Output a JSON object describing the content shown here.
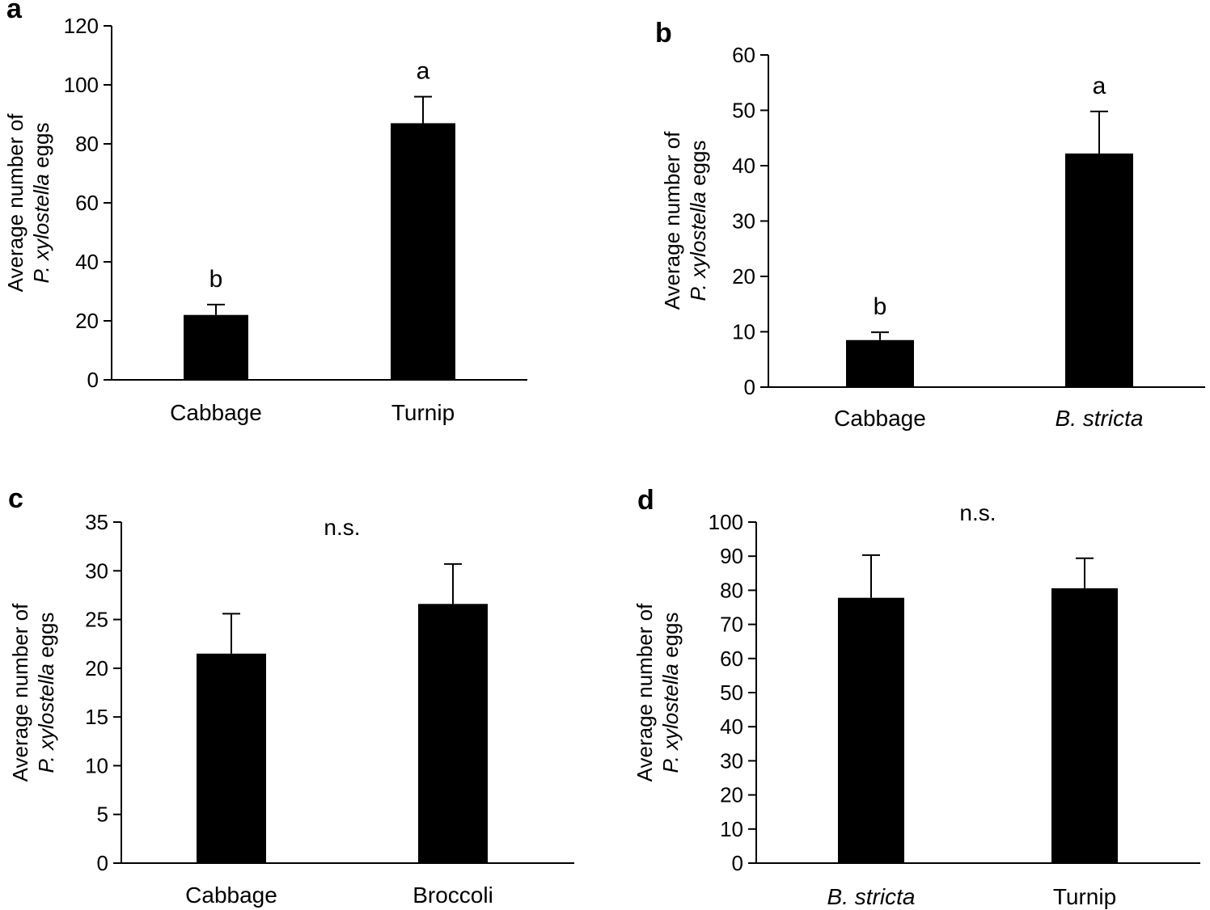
{
  "figure": {
    "panels": [
      {
        "label": "a",
        "ylabel_line1": "Average number of",
        "ylabel_species": "P. xylostella",
        "ylabel_suffix": " eggs"
      },
      {
        "label": "b",
        "ylabel_line1": "Average number of",
        "ylabel_species": "P. xylostella",
        "ylabel_suffix": " eggs"
      },
      {
        "label": "c",
        "ylabel_line1": "Average number of",
        "ylabel_species": "P. xylostella",
        "ylabel_suffix": " eggs"
      },
      {
        "label": "d",
        "ylabel_line1": "Average number of",
        "ylabel_species": "P. xylostella",
        "ylabel_suffix": " eggs"
      }
    ]
  },
  "colors": {
    "bar": "#000000",
    "axis": "#000000"
  },
  "chart_data": [
    {
      "panel": "a",
      "type": "bar",
      "categories": [
        "Cabbage",
        "Turnip"
      ],
      "italic_categories": [
        false,
        false
      ],
      "values": [
        22,
        87
      ],
      "errors": [
        3.5,
        9
      ],
      "annotations": [
        "b",
        "a"
      ],
      "note": "",
      "ylim": [
        0,
        120
      ],
      "yticks": [
        0,
        20,
        40,
        60,
        80,
        100,
        120
      ],
      "ylabel": "Average number of P. xylostella eggs",
      "xlabel": ""
    },
    {
      "panel": "b",
      "type": "bar",
      "categories": [
        "Cabbage",
        "B. stricta"
      ],
      "italic_categories": [
        false,
        true
      ],
      "values": [
        8.5,
        42.2
      ],
      "errors": [
        1.4,
        7.6
      ],
      "annotations": [
        "b",
        "a"
      ],
      "note": "",
      "ylim": [
        0,
        60
      ],
      "yticks": [
        0,
        10,
        20,
        30,
        40,
        50,
        60
      ],
      "ylabel": "Average number of P. xylostella eggs",
      "xlabel": ""
    },
    {
      "panel": "c",
      "type": "bar",
      "categories": [
        "Cabbage",
        "Broccoli"
      ],
      "italic_categories": [
        false,
        false
      ],
      "values": [
        21.5,
        26.6
      ],
      "errors": [
        4.1,
        4.1
      ],
      "annotations": [
        "",
        ""
      ],
      "note": "n.s.",
      "ylim": [
        0,
        35
      ],
      "yticks": [
        0,
        5,
        10,
        15,
        20,
        25,
        30,
        35
      ],
      "ylabel": "Average number of P. xylostella eggs",
      "xlabel": ""
    },
    {
      "panel": "d",
      "type": "bar",
      "categories": [
        "B. stricta",
        "Turnip"
      ],
      "italic_categories": [
        true,
        false
      ],
      "values": [
        77.8,
        80.6
      ],
      "errors": [
        12.5,
        8.8
      ],
      "annotations": [
        "",
        ""
      ],
      "note": "n.s.",
      "ylim": [
        0,
        100
      ],
      "yticks": [
        0,
        10,
        20,
        30,
        40,
        50,
        60,
        70,
        80,
        90,
        100
      ],
      "ylabel": "Average number of P. xylostella eggs",
      "xlabel": ""
    }
  ]
}
